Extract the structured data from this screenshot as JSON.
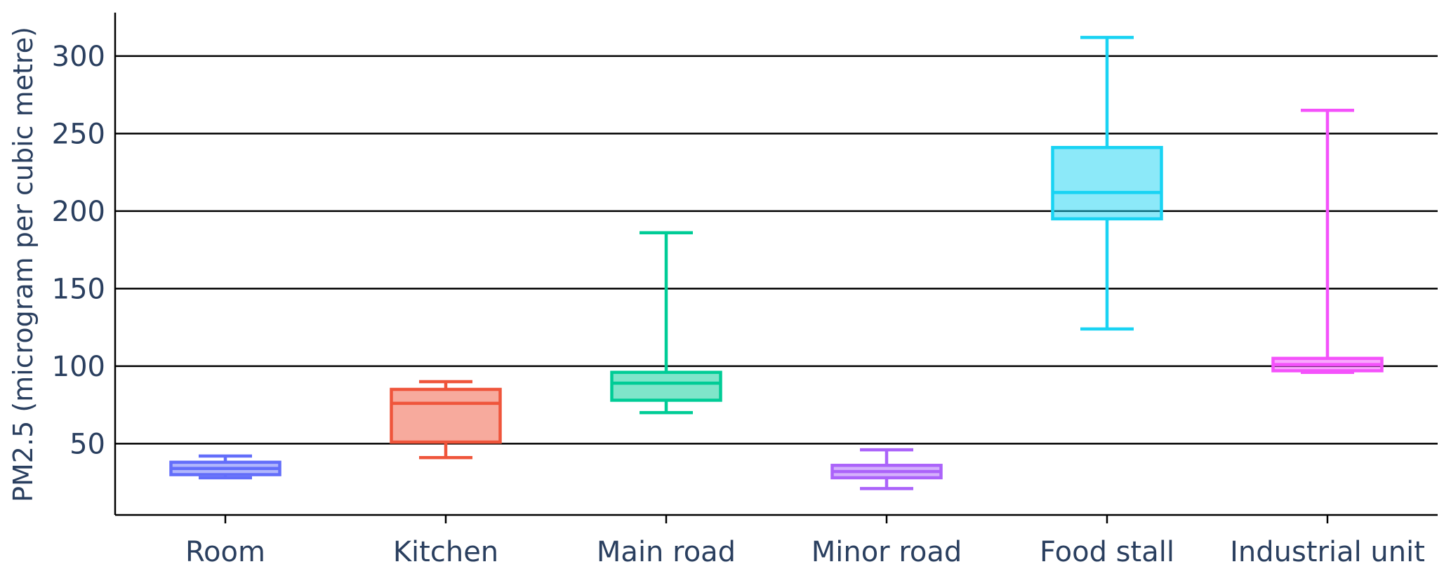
{
  "chart_data": {
    "type": "box",
    "title": "",
    "xlabel": "",
    "ylabel": "PM2.5 (microgram per cubic metre)",
    "ylim": [
      4,
      328
    ],
    "yticks": [
      50,
      100,
      150,
      200,
      250,
      300
    ],
    "grid": true,
    "legend": "none",
    "categories": [
      "Room",
      "Kitchen",
      "Main road",
      "Minor road",
      "Food stall",
      "Industrial unit"
    ],
    "series": [
      {
        "category": "Room",
        "color": "#636efa",
        "min": 28,
        "q1": 30,
        "median": 34,
        "q3": 38,
        "max": 42
      },
      {
        "category": "Kitchen",
        "color": "#ef553b",
        "min": 41,
        "q1": 51,
        "median": 76,
        "q3": 85,
        "max": 90
      },
      {
        "category": "Main road",
        "color": "#00cc96",
        "min": 70,
        "q1": 78,
        "median": 89,
        "q3": 96,
        "max": 186
      },
      {
        "category": "Minor road",
        "color": "#ab63fa",
        "min": 21,
        "q1": 28,
        "median": 32,
        "q3": 36,
        "max": 46
      },
      {
        "category": "Food stall",
        "color": "#19d3f3",
        "min": 124,
        "q1": 195,
        "median": 212,
        "q3": 241,
        "max": 312
      },
      {
        "category": "Industrial unit",
        "color": "#f452fb",
        "min": 96,
        "q1": 97,
        "median": 101,
        "q3": 105,
        "max": 265
      }
    ]
  }
}
